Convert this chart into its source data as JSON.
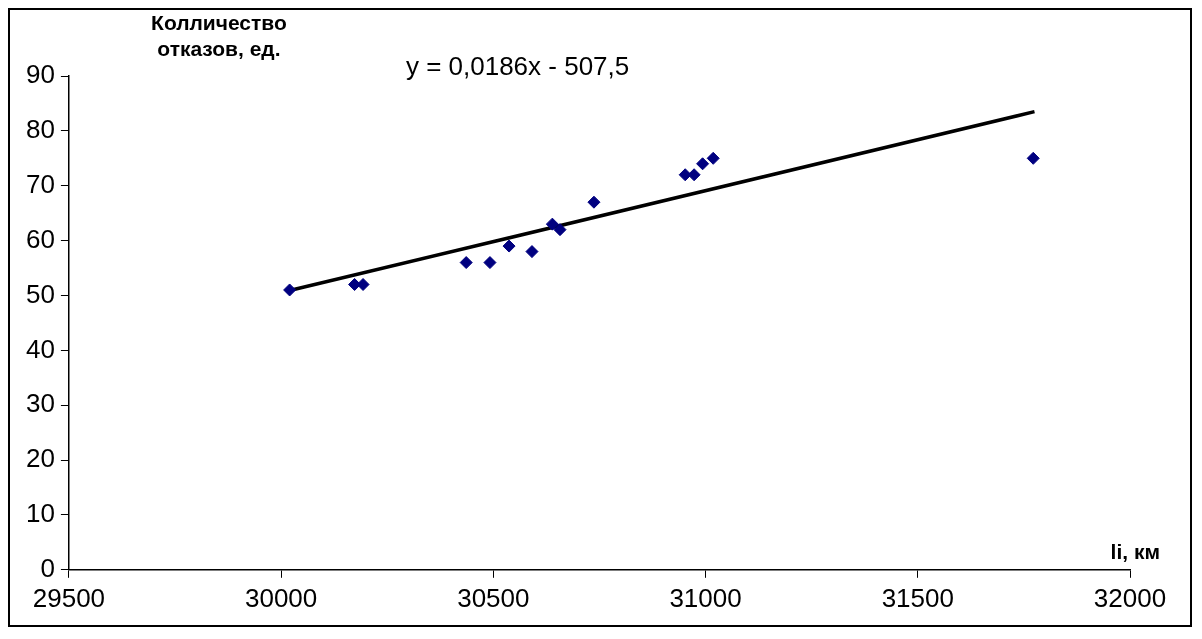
{
  "chart_data": {
    "type": "scatter",
    "xlabel": "li, км",
    "ylabel": "Колличество\nотказов, ед.",
    "annotations": [
      "y = 0,0186x - 507,5"
    ],
    "xlim": [
      29500,
      32000
    ],
    "xticks": [
      29500,
      30000,
      30500,
      31000,
      31500,
      32000
    ],
    "ylim": [
      0,
      90
    ],
    "yticks": [
      0,
      10,
      20,
      30,
      40,
      50,
      60,
      70,
      80,
      90
    ],
    "grid": false,
    "legend": false,
    "series": [
      {
        "type": "scatter",
        "color": "#000080",
        "marker": "diamond",
        "x": [
          30020,
          30173,
          30193,
          30436,
          30492,
          30537,
          30591,
          30639,
          30657,
          30737,
          30952,
          30973,
          30993,
          31018,
          31772
        ],
        "values": [
          51,
          52,
          52,
          56,
          56,
          59,
          58,
          63,
          62,
          67,
          72,
          72,
          74,
          75,
          75
        ]
      },
      {
        "type": "line",
        "color": "#000000",
        "marker": "none",
        "x": [
          30020,
          31775
        ],
        "values": [
          50.9,
          83.5
        ]
      }
    ]
  }
}
